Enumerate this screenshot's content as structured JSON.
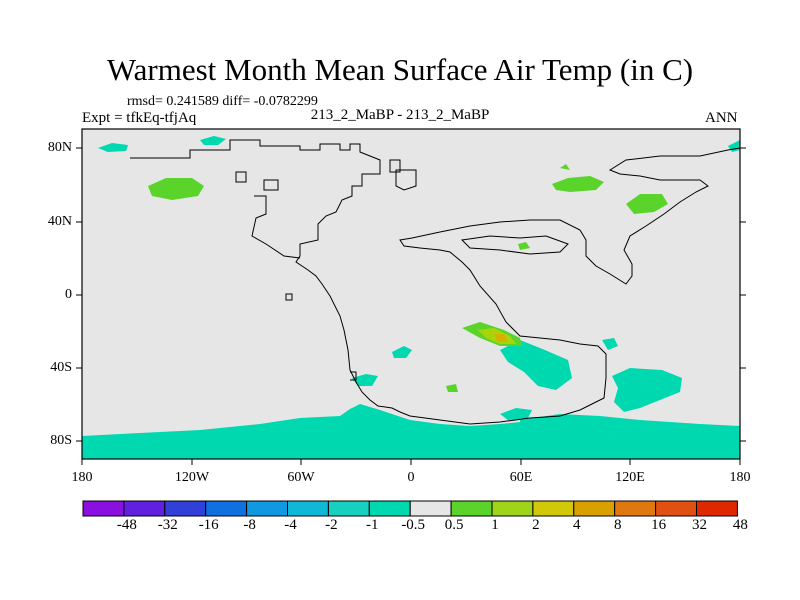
{
  "title": "Warmest Month Mean Surface Air Temp (in C)",
  "stats": "rmsd= 0.241589  diff= -0.0782299",
  "expt": "Expt = tfkEq-tfjAq",
  "center_label": "213_2_MaBP - 213_2_MaBP",
  "season": "ANN",
  "colors": {
    "land_fill": "#e6e6e6",
    "cyan": "#00d8b0",
    "green": "#5ad42a",
    "yellow_green": "#a8d40a",
    "yellow": "#d8b000"
  },
  "lat_labels": [
    "80N",
    "40N",
    "0",
    "40S",
    "80S"
  ],
  "lon_labels": [
    "180",
    "120W",
    "60W",
    "0",
    "60E",
    "120E",
    "180"
  ],
  "colorbar": {
    "labels": [
      "-48",
      "-32",
      "-16",
      "-8",
      "-4",
      "-2",
      "-1",
      "-0.5",
      "0.5",
      "1",
      "2",
      "4",
      "8",
      "16",
      "32",
      "48"
    ],
    "colors": [
      "#8a10e0",
      "#6020e0",
      "#3040d8",
      "#1070e0",
      "#1098e0",
      "#10b8d8",
      "#18d0c0",
      "#00d8b0",
      "#e6e6e6",
      "#5ad42a",
      "#a0d418",
      "#d0c808",
      "#d8a000",
      "#e07810",
      "#e05010",
      "#e02800"
    ]
  }
}
